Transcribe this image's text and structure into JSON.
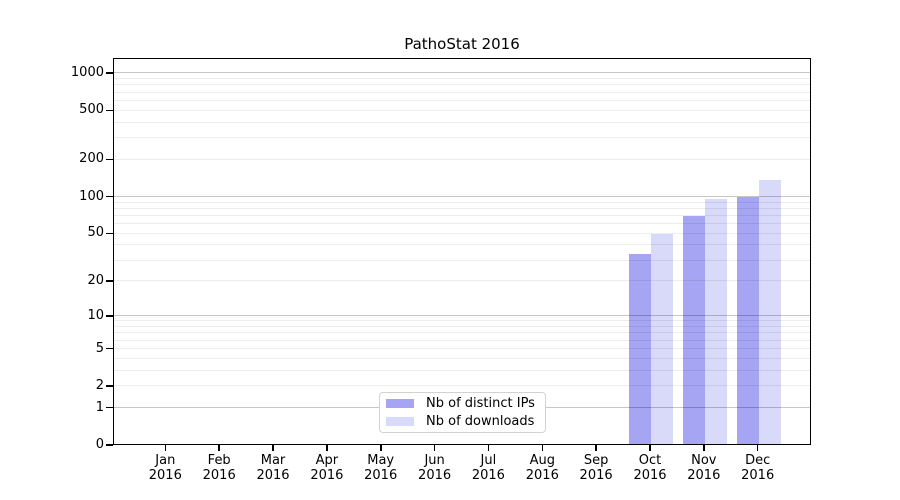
{
  "chart_data": {
    "type": "bar",
    "title": "PathoStat 2016",
    "x": {
      "months": [
        "Jan",
        "Feb",
        "Mar",
        "Apr",
        "May",
        "Jun",
        "Jul",
        "Aug",
        "Sep",
        "Oct",
        "Nov",
        "Dec"
      ],
      "year": "2016"
    },
    "series": [
      {
        "name": "Nb of distinct IPs",
        "key": "distinct-ips",
        "color": "#a5a5f4",
        "values": [
          0,
          0,
          0,
          0,
          0,
          0,
          0,
          0,
          0,
          33,
          68,
          97
        ]
      },
      {
        "name": "Nb of downloads",
        "key": "downloads",
        "color": "#d9d9f9",
        "values": [
          0,
          0,
          0,
          0,
          0,
          0,
          0,
          0,
          0,
          48,
          94,
          133
        ]
      }
    ],
    "y_axis": {
      "tick_values": [
        0,
        1,
        2,
        5,
        10,
        20,
        50,
        100,
        200,
        500,
        1000
      ],
      "scale": "log10(value+1)",
      "major_grid_values": [
        1,
        10,
        100,
        1000
      ]
    },
    "grid": {
      "shown": true
    },
    "legend": {
      "position": "bottom-center"
    }
  }
}
